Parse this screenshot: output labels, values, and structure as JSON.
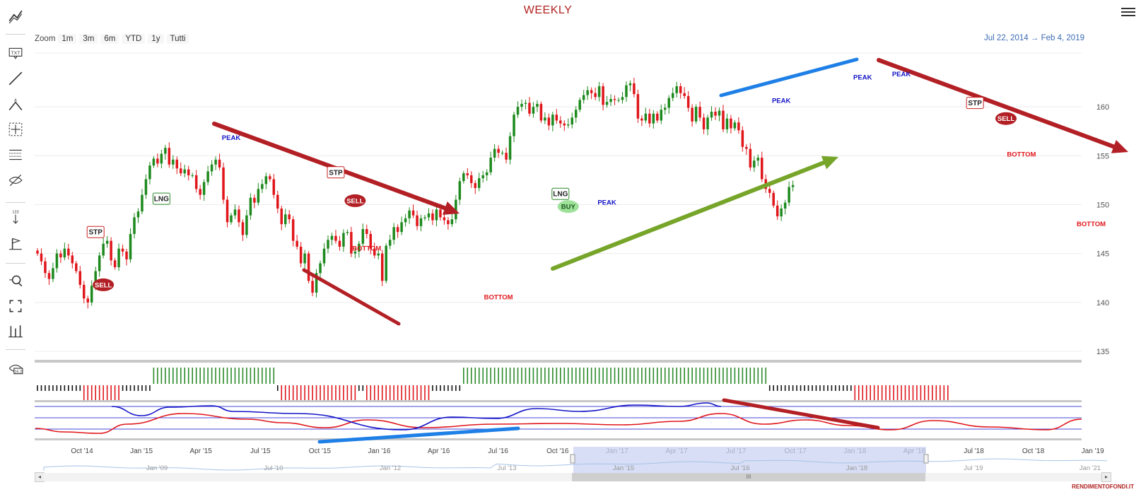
{
  "title": "WEEKLY",
  "zoom": {
    "label": "Zoom",
    "buttons": [
      "1m",
      "3m",
      "6m",
      "YTD",
      "1y",
      "Tutti"
    ]
  },
  "date_range": {
    "from": "Jul 22, 2014",
    "arrow": "→",
    "to": "Feb 4, 2019"
  },
  "toolbar_icons": [
    "trend-icon",
    "text-annotation-icon",
    "line-icon",
    "triangle-icon",
    "crosshair-icon",
    "measure-icon",
    "hide-icon",
    "numbered-arrow-icon",
    "flag-icon",
    "zoom-icon",
    "fullscreen-icon",
    "indicators-icon",
    "price-label-icon"
  ],
  "watermark": "RENDIMENTOFONDI.IT",
  "scrollbar_thumb": "III",
  "colors": {
    "up": "#1e8a1e",
    "down": "#e0161b",
    "peak": "#1414c8",
    "bottom": "#e0161b",
    "arrow_red": "#b21f24",
    "arrow_green": "#76a52a",
    "line_blue": "#1e7fe6",
    "title": "#b22222",
    "navigator_fill": "#c9d3f2"
  },
  "chart_data": {
    "type": "candlestick",
    "y_ticks": [
      135,
      140,
      145,
      150,
      155,
      160
    ],
    "ylim": [
      135,
      165.5
    ],
    "x_ticks": [
      "Oct '14",
      "Jan '15",
      "Apr '15",
      "Jul '15",
      "Oct '15",
      "Jan '16",
      "Apr '16",
      "Jul '16",
      "Oct '16",
      "Jan '17",
      "Apr '17",
      "Jul '17",
      "Oct '17",
      "Jan '18",
      "Apr '18",
      "Jul '18",
      "Oct '18",
      "Jan '19"
    ],
    "navigator_ticks": [
      "Jan '09",
      "Jul '10",
      "Jan '12",
      "Jul '13",
      "Jan '15",
      "Jul '16",
      "Jan '18",
      "Jul '19",
      "Jan '21"
    ],
    "closes": [
      145.0,
      144.2,
      143.0,
      142.4,
      143.5,
      145.0,
      144.6,
      145.5,
      144.8,
      144.0,
      143.2,
      141.8,
      140.4,
      140.0,
      141.7,
      143.2,
      144.8,
      146.0,
      146.3,
      144.3,
      143.6,
      145.5,
      145.2,
      144.4,
      147.0,
      148.7,
      149.3,
      151.0,
      152.6,
      154.0,
      154.7,
      154.2,
      155.2,
      155.8,
      154.1,
      154.6,
      153.7,
      153.2,
      153.6,
      153.0,
      153.0,
      151.6,
      151.0,
      152.3,
      153.4,
      154.1,
      154.6,
      153.8,
      150.5,
      148.2,
      148.9,
      149.5,
      148.2,
      146.9,
      148.9,
      150.7,
      150.2,
      151.6,
      152.1,
      152.9,
      152.6,
      151.0,
      149.6,
      148.0,
      149.0,
      148.5,
      146.3,
      145.7,
      144.0,
      145.0,
      142.2,
      141.0,
      143.0,
      144.0,
      145.5,
      146.4,
      146.8,
      146.3,
      145.7,
      147.1,
      147.2,
      145.0,
      145.2,
      146.0,
      147.5,
      147.0,
      145.5,
      144.8,
      145.0,
      142.2,
      145.8,
      146.4,
      147.7,
      147.2,
      148.2,
      148.6,
      149.4,
      148.9,
      147.8,
      148.6,
      148.7,
      149.1,
      148.4,
      149.5,
      148.7,
      148.4,
      148.0,
      148.5,
      150.5,
      152.4,
      153.2,
      153.0,
      152.2,
      151.7,
      152.7,
      153.0,
      153.3,
      154.8,
      155.7,
      155.3,
      155.3,
      154.6,
      157.0,
      159.2,
      160.0,
      160.3,
      160.4,
      159.3,
      160.0,
      160.3,
      158.6,
      158.9,
      158.1,
      159.2,
      158.6,
      158.3,
      158.1,
      158.2,
      158.9,
      159.7,
      160.7,
      161.2,
      161.7,
      161.4,
      161.0,
      162.1,
      160.2,
      160.5,
      160.8,
      160.7,
      160.7,
      161.0,
      162.2,
      162.4,
      161.3,
      158.8,
      158.6,
      159.3,
      158.3,
      159.3,
      158.6,
      159.7,
      159.9,
      160.9,
      161.4,
      162.1,
      161.4,
      161.1,
      159.9,
      158.5,
      160.0,
      158.9,
      157.7,
      158.9,
      159.5,
      159.1,
      159.6,
      157.7,
      158.8,
      157.8,
      158.4,
      157.6,
      155.9,
      155.7,
      153.8,
      154.5,
      154.8,
      152.6,
      151.6,
      151.2,
      149.9,
      148.8,
      149.6,
      150.2,
      151.8,
      152.0
    ],
    "candle_width": 3.5,
    "volume_signal": [
      0,
      0,
      0,
      0,
      0,
      0,
      0,
      0,
      0,
      0,
      0,
      0,
      -1,
      -1,
      -1,
      -1,
      -1,
      -1,
      -1,
      -1,
      -1,
      -1,
      0,
      0,
      0,
      0,
      0,
      0,
      0,
      0,
      1,
      1,
      1,
      1,
      1,
      1,
      1,
      1,
      1,
      1,
      1,
      1,
      1,
      1,
      1,
      1,
      1,
      1,
      1,
      1,
      1,
      1,
      1,
      1,
      1,
      1,
      1,
      1,
      1,
      1,
      1,
      1,
      0,
      -1,
      -1,
      -1,
      -1,
      -1,
      -1,
      -1,
      -1,
      -1,
      -1,
      -1,
      -1,
      -1,
      -1,
      -1,
      -1,
      -1,
      -1,
      -1,
      -1,
      0,
      0,
      -1,
      -1,
      -1,
      -1,
      -1,
      -1,
      -1,
      -1,
      -1,
      -1,
      -1,
      -1,
      -1,
      -1,
      -1,
      -1,
      -1,
      0,
      0,
      0,
      0,
      0,
      0,
      0,
      0,
      1,
      1,
      1,
      1,
      1,
      1,
      1,
      1,
      1,
      1,
      1,
      1,
      1,
      1,
      1,
      1,
      1,
      1,
      1,
      1,
      1,
      1,
      1,
      1,
      1,
      1,
      1,
      1,
      1,
      1,
      1,
      1,
      1,
      1,
      1,
      1,
      1,
      1,
      1,
      1,
      1,
      1,
      1,
      1,
      1,
      1,
      1,
      1,
      1,
      1,
      1,
      1,
      1,
      1,
      1,
      1,
      1,
      1,
      1,
      1,
      1,
      1,
      1,
      1,
      1,
      1,
      1,
      1,
      1,
      1,
      1,
      1,
      1,
      1,
      1,
      1,
      1,
      1,
      1,
      0,
      0,
      0,
      0,
      0,
      0,
      0,
      0,
      0,
      0,
      0,
      0,
      0,
      0,
      0,
      0,
      0,
      0,
      0,
      0,
      0,
      0,
      -1,
      -1,
      -1,
      -1,
      -1,
      -1,
      -1,
      -1,
      -1,
      -1,
      -1,
      -1,
      -1,
      -1,
      -1,
      -1,
      -1,
      -1,
      -1,
      -1,
      -1,
      -1,
      -1,
      -1,
      -1
    ],
    "oscillator": {
      "blue_segments": [
        [
          158,
          565
        ],
        [
          200,
          578
        ],
        [
          240,
          566
        ],
        [
          300,
          564
        ],
        [
          330,
          572
        ],
        [
          420,
          575
        ],
        [
          570,
          598
        ],
        [
          640,
          580
        ],
        [
          700,
          582
        ],
        [
          760,
          568
        ],
        [
          820,
          572
        ],
        [
          900,
          563
        ],
        [
          960,
          565
        ],
        [
          1000,
          560
        ],
        [
          1020,
          565
        ]
      ],
      "red_segments": [
        [
          50,
          596
        ],
        [
          90,
          601
        ],
        [
          140,
          603
        ],
        [
          180,
          590
        ],
        [
          260,
          575
        ],
        [
          350,
          583
        ],
        [
          400,
          588
        ],
        [
          460,
          595
        ],
        [
          520,
          584
        ],
        [
          600,
          595
        ],
        [
          700,
          590
        ],
        [
          790,
          589
        ],
        [
          880,
          591
        ],
        [
          960,
          586
        ],
        [
          1020,
          575
        ],
        [
          1080,
          590
        ],
        [
          1140,
          584
        ],
        [
          1200,
          592
        ],
        [
          1260,
          598
        ],
        [
          1320,
          585
        ],
        [
          1400,
          594
        ],
        [
          1480,
          598
        ],
        [
          1530,
          583
        ]
      ],
      "hlines": [
        565,
        581,
        597
      ]
    },
    "annotations": [
      {
        "type": "flag",
        "label": "STP",
        "i": 15,
        "value": 147.2
      },
      {
        "type": "sell",
        "label": "SELL",
        "i": 17,
        "value": 141.8
      },
      {
        "type": "flag",
        "label": "LNG",
        "i": 32,
        "value": 150.6
      },
      {
        "type": "peak",
        "label": "PEAK",
        "i": 50,
        "value": 156.6
      },
      {
        "type": "flag",
        "label": "STP",
        "i": 77,
        "value": 153.3
      },
      {
        "type": "sell",
        "label": "SELL",
        "i": 82,
        "value": 150.4
      },
      {
        "type": "bottom",
        "label": "BOTTOM",
        "i": 85,
        "value": 145.3
      },
      {
        "type": "bottom",
        "label": "BOTTOM",
        "i": 119,
        "value": 140.3
      },
      {
        "type": "flag",
        "label": "LNG",
        "i": 135,
        "value": 151.1
      },
      {
        "type": "buy",
        "label": "BUY",
        "i": 137,
        "value": 149.8
      },
      {
        "type": "peak",
        "label": "PEAK",
        "i": 147,
        "value": 150.0
      },
      {
        "type": "peak",
        "label": "PEAK",
        "i": 192,
        "value": 160.4
      },
      {
        "type": "peak",
        "label": "PEAK",
        "i": 213,
        "value": 162.8
      },
      {
        "type": "peak",
        "label": "PEAK",
        "i": 223,
        "value": 163.1
      },
      {
        "type": "flag",
        "label": "STP",
        "i": 242,
        "value": 160.4
      },
      {
        "type": "sell",
        "label": "SELL",
        "i": 250,
        "value": 158.8
      },
      {
        "type": "bottom",
        "label": "BOTTOM",
        "i": 254,
        "value": 154.9
      },
      {
        "type": "bottom",
        "label": "BOTTOM",
        "i": 272,
        "value": 147.8
      }
    ]
  }
}
